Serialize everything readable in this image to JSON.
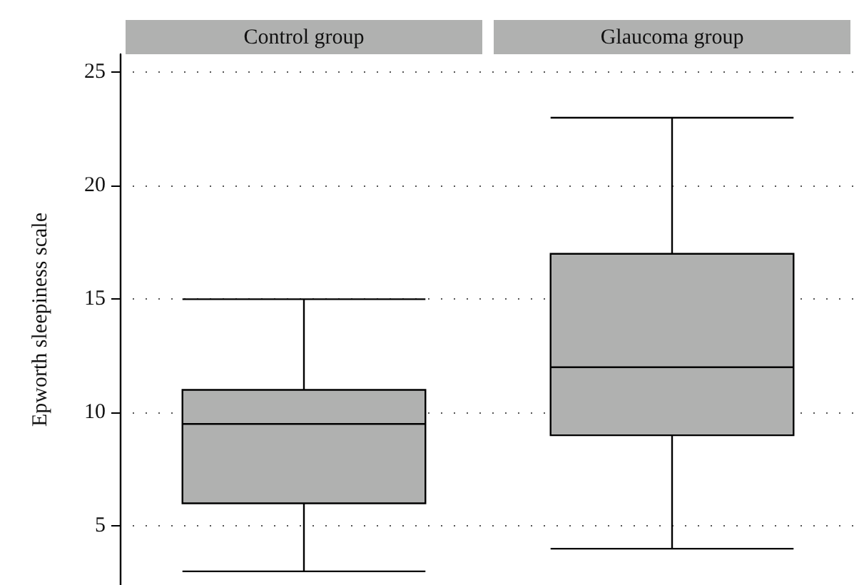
{
  "chart_data": {
    "type": "box",
    "ylabel": "Epworth sleepiness scale",
    "categories": [
      "Control group",
      "Glaucoma group"
    ],
    "boxes": [
      {
        "low": 3,
        "q1": 6,
        "median": 9.5,
        "q3": 11,
        "high": 15
      },
      {
        "low": 4,
        "q1": 9,
        "median": 12,
        "q3": 17,
        "high": 23
      }
    ],
    "color": "#b0b1b0",
    "ylim": [
      2.4,
      25.8
    ],
    "yticks": [
      5,
      10,
      15,
      20,
      25
    ],
    "grid": "y"
  }
}
